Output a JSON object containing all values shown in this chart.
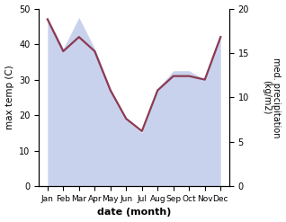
{
  "months": [
    "Jan",
    "Feb",
    "Mar",
    "Apr",
    "May",
    "Jun",
    "Jul",
    "Aug",
    "Sep",
    "Oct",
    "Nov",
    "Dec"
  ],
  "temp_values": [
    47.0,
    38.0,
    42.0,
    38.0,
    27.0,
    19.0,
    15.5,
    27.0,
    31.0,
    31.0,
    30.0,
    42.0
  ],
  "precip_values": [
    19.0,
    15.5,
    19.0,
    15.5,
    11.0,
    7.5,
    6.0,
    11.0,
    13.0,
    13.0,
    12.0,
    17.0
  ],
  "line_color": "#8b3a52",
  "fill_color": "#b8c4e8",
  "fill_alpha": 0.75,
  "temp_ylim": [
    0,
    50
  ],
  "precip_ylim": [
    0,
    20
  ],
  "temp_yticks": [
    0,
    10,
    20,
    30,
    40,
    50
  ],
  "precip_yticks": [
    0,
    5,
    10,
    15,
    20
  ],
  "xlabel": "date (month)",
  "ylabel_left": "max temp (C)",
  "ylabel_right": "med. precipitation\n(kg/m2)",
  "line_width": 1.6
}
